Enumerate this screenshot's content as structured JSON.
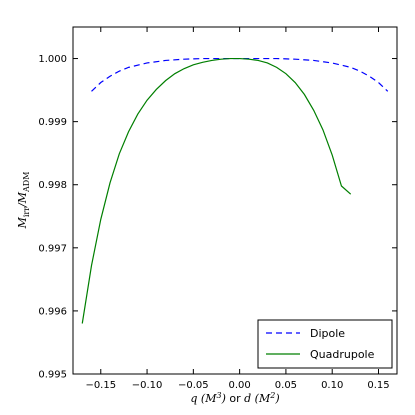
{
  "chart_data": {
    "type": "line",
    "xlabel": "q (M³) or d (M²)",
    "ylabel": "M_irr/M_ADM",
    "xlim": [
      -0.18,
      0.17
    ],
    "ylim": [
      0.995,
      1.0005
    ],
    "xticks": [
      -0.15,
      -0.1,
      -0.05,
      0.0,
      0.05,
      0.1,
      0.15
    ],
    "xtick_labels": [
      "−0.15",
      "−0.10",
      "−0.05",
      "0.00",
      "0.05",
      "0.10",
      "0.15"
    ],
    "yticks": [
      0.995,
      0.996,
      0.997,
      0.998,
      0.999,
      1.0
    ],
    "ytick_labels": [
      "0.995",
      "0.996",
      "0.997",
      "0.998",
      "0.999",
      "1.000"
    ],
    "grid": false,
    "legend_position": "lower-right",
    "series": [
      {
        "name": "Dipole",
        "color": "#0000ff",
        "style": "dashed",
        "x": [
          -0.16,
          -0.15,
          -0.14,
          -0.13,
          -0.12,
          -0.1,
          -0.08,
          -0.06,
          -0.04,
          -0.02,
          0.0,
          0.02,
          0.04,
          0.06,
          0.08,
          0.1,
          0.12,
          0.13,
          0.14,
          0.15,
          0.16
        ],
        "y": [
          0.99948,
          0.99962,
          0.99972,
          0.9998,
          0.99986,
          0.99993,
          0.99997,
          0.99999,
          1.0,
          1.0,
          1.0,
          1.0,
          1.0,
          0.99999,
          0.99997,
          0.99993,
          0.99986,
          0.9998,
          0.99972,
          0.99962,
          0.99948
        ]
      },
      {
        "name": "Quadrupole",
        "color": "#007f00",
        "style": "solid",
        "x": [
          -0.17,
          -0.16,
          -0.15,
          -0.14,
          -0.13,
          -0.12,
          -0.11,
          -0.1,
          -0.09,
          -0.08,
          -0.07,
          -0.06,
          -0.05,
          -0.04,
          -0.03,
          -0.02,
          -0.01,
          0.0,
          0.01,
          0.02,
          0.03,
          0.04,
          0.05,
          0.06,
          0.07,
          0.08,
          0.09,
          0.1,
          0.11,
          0.12
        ],
        "y": [
          0.9958,
          0.99672,
          0.99745,
          0.99803,
          0.99849,
          0.99884,
          0.99912,
          0.99934,
          0.99951,
          0.99965,
          0.99976,
          0.99984,
          0.9999,
          0.99994,
          0.99997,
          0.99999,
          1.0,
          1.0,
          0.99999,
          0.99997,
          0.99993,
          0.99986,
          0.99976,
          0.99962,
          0.99943,
          0.99918,
          0.99887,
          0.99847,
          0.99798,
          0.99785
        ]
      }
    ]
  }
}
